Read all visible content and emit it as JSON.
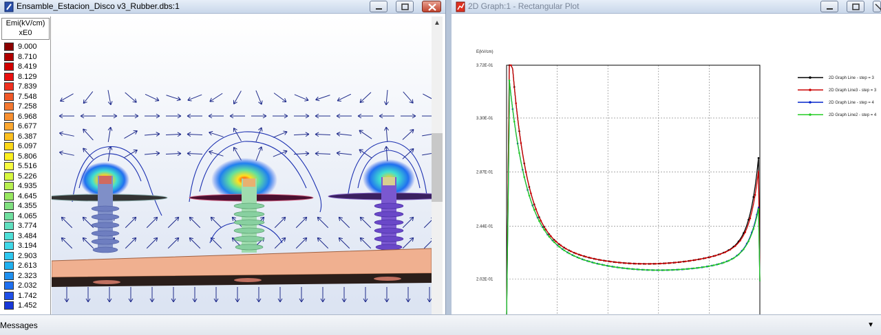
{
  "left_window": {
    "title": "Ensamble_Estacion_Disco v3_Rubber.dbs:1",
    "legend": {
      "header_line1": "Emi(kV/cm)",
      "header_line2": "xE0",
      "items": [
        {
          "value": "9.000",
          "color": "#8b0000"
        },
        {
          "value": "8.710",
          "color": "#b00000"
        },
        {
          "value": "8.419",
          "color": "#d00000"
        },
        {
          "value": "8.129",
          "color": "#e81010"
        },
        {
          "value": "7.839",
          "color": "#f03020"
        },
        {
          "value": "7.548",
          "color": "#f05828"
        },
        {
          "value": "7.258",
          "color": "#f47830"
        },
        {
          "value": "6.968",
          "color": "#f89030"
        },
        {
          "value": "6.677",
          "color": "#fca830"
        },
        {
          "value": "6.387",
          "color": "#fcc020"
        },
        {
          "value": "6.097",
          "color": "#fcd818"
        },
        {
          "value": "5.806",
          "color": "#fcf020"
        },
        {
          "value": "5.516",
          "color": "#f8fc40"
        },
        {
          "value": "5.226",
          "color": "#d8f840"
        },
        {
          "value": "4.935",
          "color": "#b8f050"
        },
        {
          "value": "4.645",
          "color": "#98e860"
        },
        {
          "value": "4.355",
          "color": "#80e080"
        },
        {
          "value": "4.065",
          "color": "#70e0a0"
        },
        {
          "value": "3.774",
          "color": "#60e0c0"
        },
        {
          "value": "3.484",
          "color": "#50e0d8"
        },
        {
          "value": "3.194",
          "color": "#40d8e8"
        },
        {
          "value": "2.903",
          "color": "#30c8f0"
        },
        {
          "value": "2.613",
          "color": "#20b0f0"
        },
        {
          "value": "2.323",
          "color": "#2090f0"
        },
        {
          "value": "2.032",
          "color": "#2070f0"
        },
        {
          "value": "1.742",
          "color": "#2050e8"
        },
        {
          "value": "1.452",
          "color": "#1838d8"
        }
      ]
    }
  },
  "right_window": {
    "title": "2D Graph:1 - Rectangular Plot"
  },
  "messages_bar": {
    "label": "Messages"
  },
  "chart_data": {
    "type": "line",
    "title": "",
    "ylabel": "E(kV/cm)",
    "xlabel": "",
    "ylim": [
      0.17,
      0.372
    ],
    "yticks": [
      "3.72E-01",
      "3.30E-01",
      "2.87E-01",
      "2.44E-01",
      "2.02E-01"
    ],
    "ytick_values": [
      0.372,
      0.33,
      0.287,
      0.244,
      0.202
    ],
    "grid": true,
    "legend_position": "top-right",
    "series": [
      {
        "name": "2D Graph Line - step = 3",
        "color": "#000000",
        "curve": "upper",
        "end_value": 0.288
      },
      {
        "name": "2D Graph Line3 - step = 3",
        "color": "#cc0000",
        "curve": "upper",
        "end_value": 0.278
      },
      {
        "name": "2D Graph Line - step = 4",
        "color": "#0022cc",
        "curve": "lower",
        "end_value": 0.254
      },
      {
        "name": "2D Graph Line2 - step = 4",
        "color": "#22cc22",
        "curve": "lower",
        "end_value": 0.252
      }
    ]
  }
}
